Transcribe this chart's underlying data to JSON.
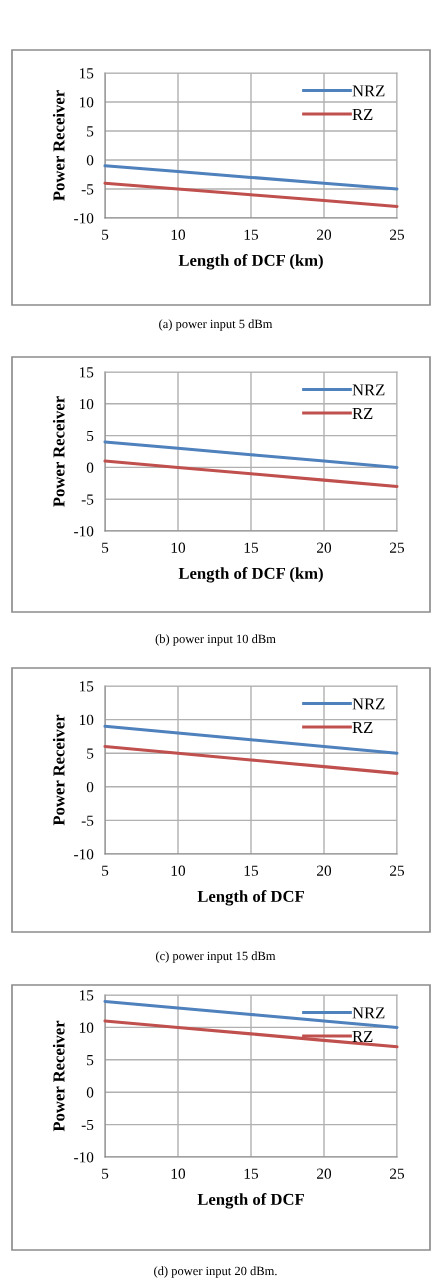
{
  "chart_data": [
    {
      "type": "line",
      "xlabel": "Length of DCF (km)",
      "ylabel": "Power Receiver",
      "x": [
        5,
        10,
        15,
        20,
        25
      ],
      "xlim": [
        5,
        25
      ],
      "xticks": [
        5,
        10,
        15,
        20,
        25
      ],
      "ylim": [
        -10,
        15
      ],
      "yticks": [
        -10,
        -5,
        0,
        5,
        10,
        15
      ],
      "grid": true,
      "legend": "top right",
      "marker": "none",
      "annotations": [
        "(a) power input 5 dBm"
      ],
      "series": [
        {
          "name": "NRZ",
          "color": "#4f81bd",
          "values": [
            -1,
            -2,
            -3,
            -4,
            -5
          ]
        },
        {
          "name": "RZ",
          "color": "#c0504d",
          "values": [
            -4,
            -5,
            -6,
            -7,
            -8
          ]
        }
      ]
    },
    {
      "type": "line",
      "xlabel": "Length of DCF (km)",
      "ylabel": "Power Receiver",
      "x": [
        5,
        10,
        15,
        20,
        25
      ],
      "xlim": [
        5,
        25
      ],
      "xticks": [
        5,
        10,
        15,
        20,
        25
      ],
      "ylim": [
        -10,
        15
      ],
      "yticks": [
        -10,
        -5,
        0,
        5,
        10,
        15
      ],
      "grid": true,
      "legend": "top right",
      "marker": "none",
      "annotations": [
        "(b) power input 10 dBm"
      ],
      "series": [
        {
          "name": "NRZ",
          "color": "#4f81bd",
          "values": [
            4,
            3,
            2,
            1,
            0
          ]
        },
        {
          "name": "RZ",
          "color": "#c0504d",
          "values": [
            1,
            0,
            -1,
            -2,
            -3
          ]
        }
      ]
    },
    {
      "type": "line",
      "xlabel": "Length of DCF",
      "ylabel": "Power Receiver",
      "x": [
        5,
        10,
        15,
        20,
        25
      ],
      "xlim": [
        5,
        25
      ],
      "xticks": [
        5,
        10,
        15,
        20,
        25
      ],
      "ylim": [
        -10,
        15
      ],
      "yticks": [
        -10,
        -5,
        0,
        5,
        10,
        15
      ],
      "grid": true,
      "legend": "top right",
      "marker": "none",
      "annotations": [
        "(c) power input 15 dBm"
      ],
      "series": [
        {
          "name": "NRZ",
          "color": "#4f81bd",
          "values": [
            9,
            8,
            7,
            6,
            5
          ]
        },
        {
          "name": "RZ",
          "color": "#c0504d",
          "values": [
            6,
            5,
            4,
            3,
            2
          ]
        }
      ]
    },
    {
      "type": "line",
      "xlabel": "Length of DCF",
      "ylabel": "Power Receiver",
      "x": [
        5,
        10,
        15,
        20,
        25
      ],
      "xlim": [
        5,
        25
      ],
      "xticks": [
        5,
        10,
        15,
        20,
        25
      ],
      "ylim": [
        -10,
        15
      ],
      "yticks": [
        -10,
        -5,
        0,
        5,
        10,
        15
      ],
      "grid": true,
      "legend": "top right",
      "marker": "none",
      "annotations": [
        "(d) power input 20 dBm."
      ],
      "series": [
        {
          "name": "NRZ",
          "color": "#4f81bd",
          "values": [
            14,
            13,
            12,
            11,
            10
          ]
        },
        {
          "name": "RZ",
          "color": "#c0504d",
          "values": [
            11,
            10,
            9,
            8,
            7
          ]
        }
      ]
    }
  ]
}
